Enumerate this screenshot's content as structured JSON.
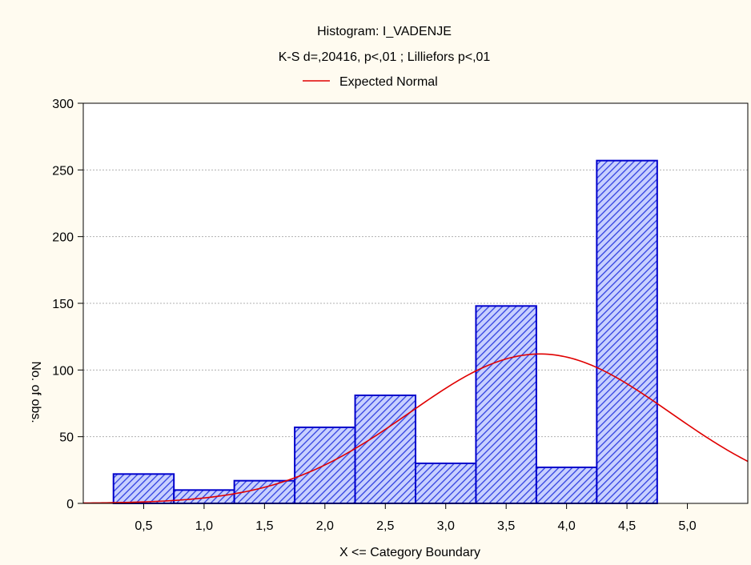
{
  "chart_data": {
    "type": "bar",
    "title": "Histogram: I_VADENJE",
    "subtitle": "K-S d=,20416, p<,01 ; Lilliefors p<,01",
    "xlabel": "X <= Category Boundary",
    "ylabel": "No. of obs.",
    "x_ticks": [
      {
        "value": 0.5,
        "label": "0,5"
      },
      {
        "value": 1.0,
        "label": "1,0"
      },
      {
        "value": 1.5,
        "label": "1,5"
      },
      {
        "value": 2.0,
        "label": "2,0"
      },
      {
        "value": 2.5,
        "label": "2,5"
      },
      {
        "value": 3.0,
        "label": "3,0"
      },
      {
        "value": 3.5,
        "label": "3,5"
      },
      {
        "value": 4.0,
        "label": "4,0"
      },
      {
        "value": 4.5,
        "label": "4,5"
      },
      {
        "value": 5.0,
        "label": "5,0"
      }
    ],
    "y_ticks": [
      {
        "value": 0,
        "label": "0"
      },
      {
        "value": 50,
        "label": "50"
      },
      {
        "value": 100,
        "label": "100"
      },
      {
        "value": 150,
        "label": "150"
      },
      {
        "value": 200,
        "label": "200"
      },
      {
        "value": 250,
        "label": "250"
      },
      {
        "value": 300,
        "label": "300"
      }
    ],
    "xlim": [
      0.0,
      5.5
    ],
    "ylim": [
      0,
      300
    ],
    "grid": "horizontal dotted",
    "legend": {
      "placement": "top-center",
      "entries": [
        {
          "label": "Expected Normal",
          "color": "#e00000"
        }
      ]
    },
    "bins": [
      {
        "left": 0.25,
        "right": 0.75,
        "value": 22
      },
      {
        "left": 0.75,
        "right": 1.25,
        "value": 10
      },
      {
        "left": 1.25,
        "right": 1.75,
        "value": 17
      },
      {
        "left": 1.75,
        "right": 2.25,
        "value": 57
      },
      {
        "left": 2.25,
        "right": 2.75,
        "value": 81
      },
      {
        "left": 2.75,
        "right": 3.25,
        "value": 30
      },
      {
        "left": 3.25,
        "right": 3.75,
        "value": 148
      },
      {
        "left": 3.75,
        "right": 4.25,
        "value": 27
      },
      {
        "left": 4.25,
        "right": 4.75,
        "value": 257
      }
    ],
    "normal_curve": {
      "name": "Expected Normal",
      "color": "#e00000",
      "mean": 3.78,
      "sd": 1.08,
      "peak": 112,
      "x_range": [
        0.0,
        5.5
      ]
    },
    "colors": {
      "bar_fill": "#c8d0ff",
      "bar_hatch": "#3040e0",
      "bar_border": "#0000cc",
      "background": "#fffbf0",
      "plot_background": "#ffffff"
    }
  }
}
